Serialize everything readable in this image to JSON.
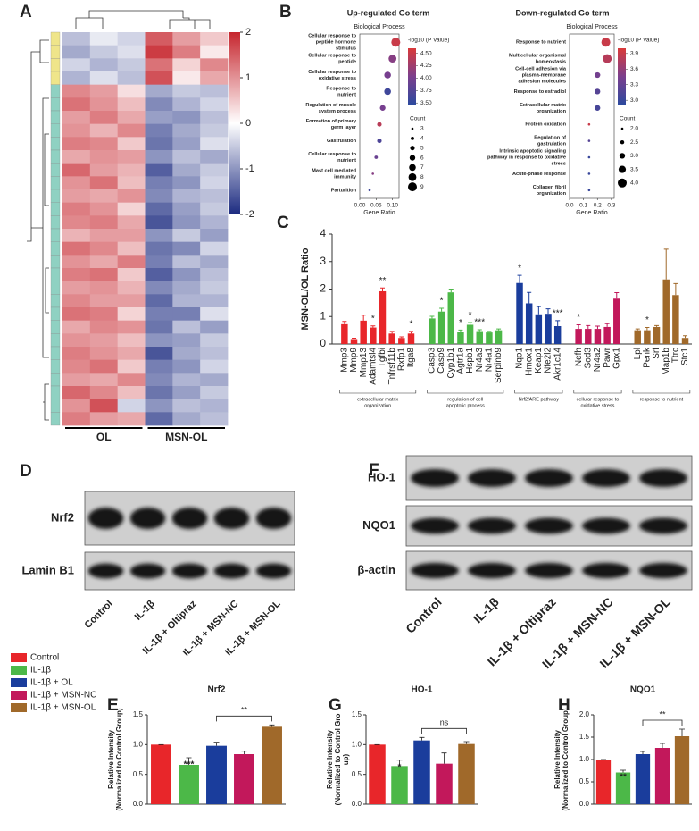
{
  "chart_data": [
    {
      "type": "heatmap",
      "panel": "A",
      "zlim": [
        -2,
        2
      ],
      "zticks": [
        2,
        1,
        0,
        -1,
        -2
      ],
      "colors": [
        "#1b2a80",
        "#ffffff",
        "#c6262e"
      ],
      "column_groups": [
        "OL",
        "MSN-OL"
      ],
      "cluster_colors": [
        "#efe58a",
        "#8fd1c2"
      ],
      "row_clusters": [
        0,
        0,
        0,
        0,
        1,
        1,
        1,
        1,
        1,
        1,
        1,
        1,
        1,
        1,
        1,
        1,
        1,
        1,
        1,
        1,
        1,
        1,
        1,
        1,
        1,
        1,
        1,
        1,
        1,
        1
      ],
      "values": [
        [
          -0.6,
          -0.2,
          -0.4,
          1.5,
          0.9,
          0.5
        ],
        [
          -0.8,
          -0.5,
          -0.3,
          1.8,
          1.2,
          0.2
        ],
        [
          -0.4,
          -0.7,
          -0.5,
          1.3,
          0.4,
          1.1
        ],
        [
          -0.7,
          -0.3,
          -0.6,
          1.6,
          0.2,
          0.8
        ],
        [
          1.1,
          0.9,
          0.3,
          -0.8,
          -0.5,
          -0.6
        ],
        [
          1.3,
          1.0,
          0.6,
          -1.1,
          -0.7,
          -0.4
        ],
        [
          0.9,
          1.2,
          0.8,
          -0.9,
          -1.0,
          -0.6
        ],
        [
          1.0,
          0.7,
          1.1,
          -1.2,
          -0.8,
          -0.5
        ],
        [
          1.2,
          1.1,
          0.5,
          -1.3,
          -0.9,
          -0.3
        ],
        [
          0.8,
          1.0,
          0.9,
          -1.0,
          -0.6,
          -0.8
        ],
        [
          1.4,
          0.9,
          0.7,
          -1.5,
          -0.8,
          -0.5
        ],
        [
          1.0,
          1.3,
          0.6,
          -1.2,
          -1.0,
          -0.4
        ],
        [
          0.9,
          0.8,
          1.0,
          -1.1,
          -0.7,
          -0.6
        ],
        [
          1.2,
          1.0,
          0.4,
          -1.4,
          -0.9,
          -0.5
        ],
        [
          1.1,
          1.2,
          0.8,
          -1.6,
          -1.0,
          -0.7
        ],
        [
          0.7,
          0.9,
          0.9,
          -1.0,
          -0.5,
          -0.9
        ],
        [
          1.3,
          1.1,
          0.6,
          -1.3,
          -1.1,
          -0.4
        ],
        [
          1.0,
          0.8,
          1.2,
          -1.2,
          -0.6,
          -0.8
        ],
        [
          1.2,
          1.3,
          0.5,
          -1.5,
          -1.0,
          -0.6
        ],
        [
          0.9,
          1.0,
          0.7,
          -1.1,
          -0.8,
          -0.5
        ],
        [
          1.1,
          0.9,
          0.9,
          -1.4,
          -0.7,
          -0.7
        ],
        [
          1.3,
          1.2,
          0.4,
          -1.2,
          -1.2,
          -0.3
        ],
        [
          0.8,
          1.1,
          1.0,
          -1.3,
          -0.6,
          -0.9
        ],
        [
          1.0,
          0.9,
          0.6,
          -1.0,
          -0.9,
          -0.5
        ],
        [
          1.2,
          1.0,
          0.8,
          -1.6,
          -0.8,
          -0.6
        ],
        [
          1.1,
          1.3,
          0.5,
          -1.2,
          -1.0,
          -0.4
        ],
        [
          0.9,
          0.8,
          1.1,
          -1.1,
          -0.7,
          -0.8
        ],
        [
          1.4,
          1.1,
          0.6,
          -1.3,
          -0.9,
          -0.5
        ],
        [
          1.0,
          1.6,
          -0.4,
          -1.0,
          -0.6,
          -0.7
        ],
        [
          1.2,
          0.9,
          0.8,
          -1.4,
          -0.8,
          -0.6
        ]
      ]
    },
    {
      "type": "dot",
      "panel": "B",
      "title": "Up-regulated Go term",
      "subtitle": "Biological Process",
      "xlabel": "Gene Ratio",
      "categories": [
        [
          "Cellular response to",
          "peptide hormone",
          "stimulus"
        ],
        [
          "Cellular response to",
          "peptide"
        ],
        [
          "Cellular response to",
          "oxidative stress"
        ],
        [
          "Response to",
          "nutrient"
        ],
        [
          "Regulation of muscle",
          "system process"
        ],
        [
          "Formation of primary",
          "germ layer"
        ],
        [
          "Gastrulation"
        ],
        [
          "Cellular response to",
          "nutrient"
        ],
        [
          "Mast cell mediated",
          "immunity"
        ],
        [
          "Parturition"
        ]
      ],
      "x": [
        0.11,
        0.1,
        0.085,
        0.085,
        0.07,
        0.06,
        0.06,
        0.05,
        0.04,
        0.03
      ],
      "color_values": [
        4.5,
        4.1,
        4.0,
        3.6,
        4.0,
        4.4,
        3.7,
        3.9,
        4.1,
        3.6
      ],
      "sizes": [
        9,
        8,
        7,
        7,
        6,
        5,
        5,
        4,
        3,
        3
      ],
      "xlim": [
        0,
        0.12
      ],
      "xticks": [
        {
          "value": 0,
          "label": "0.00"
        },
        0.05,
        {
          "value": 0.1,
          "label": "0.10"
        }
      ],
      "color_title": "-log10 (P Value)",
      "clim": [
        3.45,
        4.6
      ],
      "colors": [
        "#2a4a9e",
        "#7a3f8e",
        "#d93a3a"
      ],
      "color_ticks": [
        {
          "value": 4.5,
          "label": "4.50"
        },
        4.25,
        {
          "value": 4.0,
          "label": "4.00"
        },
        3.75,
        {
          "value": 3.5,
          "label": "3.50"
        }
      ],
      "size_title": "Count",
      "size_ticks": [
        3,
        4,
        5,
        6,
        7,
        8,
        9
      ]
    },
    {
      "type": "dot",
      "title": "Down-regulated Go term",
      "subtitle": "Biological Process",
      "xlabel": "Gene Ratio",
      "categories": [
        [
          "Response to nutrient"
        ],
        [
          "Multicellular organismal",
          "homeostasis"
        ],
        [
          "Cell-cell adhesion via",
          "plasma-membrane",
          "adhesion molecules"
        ],
        [
          "Response to estradiol"
        ],
        [
          "Extracellular matrix",
          "organization"
        ],
        [
          "Protein oxidation"
        ],
        [
          "Regulation of",
          "gastrulation"
        ],
        [
          "Intrinsic apoptotic signaling",
          "pathway in response to oxidative",
          "stress"
        ],
        [
          "Acute-phase response"
        ],
        [
          "Collagen fibril",
          "organization"
        ]
      ],
      "x": [
        0.26,
        0.27,
        0.2,
        0.2,
        0.2,
        0.14,
        0.14,
        0.14,
        0.14,
        0.14
      ],
      "color_values": [
        3.9,
        3.8,
        3.4,
        3.2,
        3.1,
        3.9,
        3.2,
        3.0,
        3.0,
        3.0
      ],
      "sizes": [
        4,
        4,
        3,
        3,
        3,
        2,
        2,
        2,
        2,
        2
      ],
      "xlim": [
        0,
        0.32
      ],
      "xticks": [
        {
          "value": 0,
          "label": "0.0"
        },
        0.1,
        0.2,
        0.3
      ],
      "color_title": "-log10 (P Value)",
      "clim": [
        2.9,
        4.0
      ],
      "colors": [
        "#2a4a9e",
        "#7a3f8e",
        "#d93a3a"
      ],
      "color_ticks": [
        3.9,
        3.6,
        3.3,
        {
          "value": 3.0,
          "label": "3.0"
        }
      ],
      "size_title": "Count",
      "size_ticks": [
        {
          "value": 2,
          "label": "2.0"
        },
        2.5,
        {
          "value": 3,
          "label": "3.0"
        },
        3.5,
        {
          "value": 4,
          "label": "4.0"
        }
      ]
    },
    {
      "type": "groupbar",
      "panel": "C",
      "ylabel": "MSN-OL/OL Ratio",
      "ylim": [
        0,
        4
      ],
      "yticks": [
        0,
        1,
        2,
        3,
        4
      ],
      "groups": [
        {
          "name": [
            "extracellular matrix",
            "organization"
          ],
          "color": "#e8262a",
          "categories": [
            "Mmp3",
            "Mmp9",
            "Mmp13",
            "Adamtsl4",
            "Tgfbi",
            "Tnfrsf11b",
            "Rxfp1",
            "Itga8"
          ],
          "values": [
            0.72,
            0.18,
            0.85,
            0.6,
            1.92,
            0.38,
            0.22,
            0.38
          ],
          "errors": [
            0.1,
            0.03,
            0.2,
            0.06,
            0.12,
            0.08,
            0.04,
            0.08
          ],
          "stars": [
            null,
            null,
            null,
            "*",
            "**",
            null,
            null,
            "*"
          ]
        },
        {
          "name": [
            "regulation of cell",
            "apoptotic process"
          ],
          "color": "#4cb848",
          "categories": [
            "Casp3",
            "Casp9",
            "Cyp1b1",
            "Agtr1a",
            "Hspb1",
            "Nr4a3",
            "Nr4a1",
            "Serpinb9"
          ],
          "values": [
            0.93,
            1.18,
            1.88,
            0.45,
            0.7,
            0.47,
            0.42,
            0.5
          ],
          "errors": [
            0.08,
            0.12,
            0.12,
            0.06,
            0.08,
            0.05,
            0.04,
            0.05
          ],
          "stars": [
            null,
            "*",
            null,
            "*",
            "*",
            "***",
            null,
            null
          ]
        },
        {
          "name": [
            "Nrf2/ARE pathway"
          ],
          "color": "#1a3d9c",
          "categories": [
            "Nqo1",
            "Hmox1",
            "Keap1",
            "Nfe2l2",
            "Akr1c14"
          ],
          "values": [
            2.22,
            1.48,
            1.08,
            1.1,
            0.65
          ],
          "errors": [
            0.28,
            0.4,
            0.28,
            0.18,
            0.2
          ],
          "stars": [
            "*",
            null,
            null,
            null,
            "***"
          ]
        },
        {
          "name": [
            "cellular response to",
            "oxidative stress"
          ],
          "color": "#c2185b",
          "categories": [
            "Nefh",
            "Sod3",
            "Nr4a2",
            "Pawr",
            "Gpx1"
          ],
          "values": [
            0.55,
            0.55,
            0.55,
            0.62,
            1.65
          ],
          "errors": [
            0.15,
            0.12,
            0.1,
            0.12,
            0.22
          ],
          "stars": [
            "*",
            null,
            null,
            null,
            null
          ]
        },
        {
          "name": [
            "response to nutrient"
          ],
          "color": "#a0692a",
          "categories": [
            "Lpl",
            "Penk",
            "Srf",
            "Map1b",
            "Ttrc",
            "Stc1"
          ],
          "values": [
            0.5,
            0.5,
            0.62,
            2.35,
            1.78,
            0.22
          ],
          "errors": [
            0.05,
            0.1,
            0.05,
            1.1,
            0.42,
            0.08
          ],
          "stars": [
            null,
            "*",
            null,
            null,
            null,
            null
          ]
        }
      ]
    },
    {
      "type": "blot",
      "panel": "D",
      "rows": [
        "Nrf2",
        "Lamin B1"
      ],
      "lanes": [
        "Control",
        "IL-1β",
        "IL-1β + Oltipraz",
        "IL-1β + MSN-NC",
        "IL-1β + MSN-OL"
      ]
    },
    {
      "type": "blot",
      "panel": "F",
      "rows": [
        "HO-1",
        "NQO1",
        "β-actin"
      ],
      "lanes": [
        "Control",
        "IL-1β",
        "IL-1β + Oltipraz",
        "IL-1β + MSN-NC",
        "IL-1β + MSN-OL"
      ]
    },
    {
      "type": "bar",
      "panel": "E",
      "title": "Nrf2",
      "ylabel": [
        "Relative Intensity",
        "(Normalized to Control Group)"
      ],
      "values": [
        1.0,
        0.66,
        0.98,
        0.84,
        1.3
      ],
      "errors": [
        0.0,
        0.12,
        0.06,
        0.05,
        0.03
      ],
      "stars": [
        null,
        "***",
        null,
        null,
        null
      ],
      "bracket": "**",
      "ylim": [
        0,
        1.5
      ],
      "yticks": [
        {
          "value": 0,
          "label": "0.0"
        },
        0.5,
        {
          "value": 1,
          "label": "1.0"
        },
        1.5
      ]
    },
    {
      "type": "bar",
      "panel": "G",
      "title": "HO-1",
      "ylabel": [
        "Relative Intensity",
        "(Normalized to Control Gro",
        "up)"
      ],
      "values": [
        1.0,
        0.64,
        1.07,
        0.68,
        1.01
      ],
      "errors": [
        0.0,
        0.1,
        0.05,
        0.18,
        0.04
      ],
      "stars": [
        null,
        "*",
        null,
        null,
        null
      ],
      "bracket": "ns",
      "ylim": [
        0,
        1.5
      ],
      "yticks": [
        {
          "value": 0,
          "label": "0.0"
        },
        0.5,
        {
          "value": 1,
          "label": "1.0"
        },
        1.5
      ]
    },
    {
      "type": "bar",
      "panel": "H",
      "title": "NQO1",
      "ylabel": [
        "Relative Intensity",
        "(Normalized to Control Group)"
      ],
      "values": [
        1.0,
        0.71,
        1.12,
        1.26,
        1.52
      ],
      "errors": [
        0.0,
        0.05,
        0.06,
        0.1,
        0.16
      ],
      "stars": [
        null,
        "**",
        null,
        null,
        null
      ],
      "bracket": "**",
      "ylim": [
        0,
        2
      ],
      "yticks": [
        {
          "value": 0,
          "label": "0.0"
        },
        0.5,
        {
          "value": 1,
          "label": "1.0"
        },
        1.5,
        {
          "value": 2,
          "label": "2.0"
        }
      ]
    }
  ],
  "legend": {
    "names": [
      "Control",
      "IL-1β",
      "IL-1β + OL",
      "IL-1β + MSN-NC",
      "IL-1β + MSN-OL"
    ],
    "colors": [
      "#e8262a",
      "#4cb848",
      "#1a3d9c",
      "#c2185b",
      "#a0692a"
    ]
  }
}
